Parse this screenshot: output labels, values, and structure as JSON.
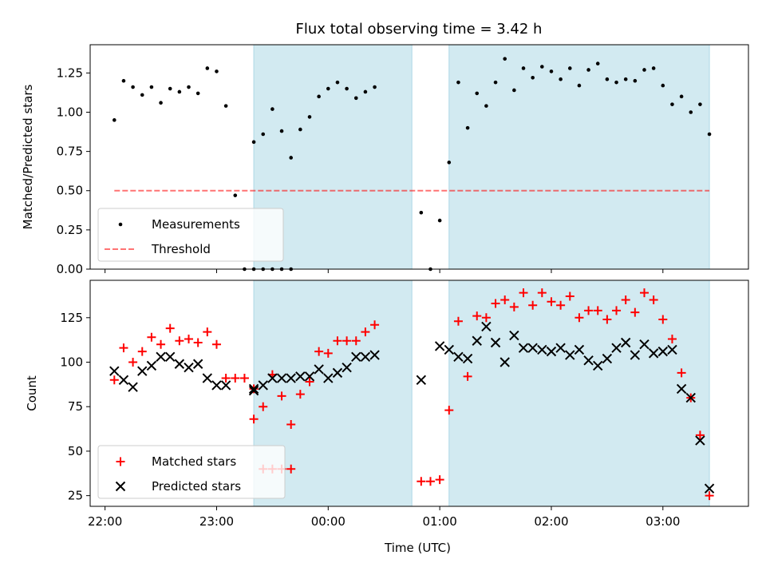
{
  "title": "Flux total observing time = 3.42 h",
  "colors": {
    "shade": "#add8e6",
    "measurement": "#000000",
    "threshold": "#ff0000",
    "matched": "#ff0000",
    "predicted": "#000000"
  },
  "chart_data": [
    {
      "type": "scatter",
      "ylabel": "Matched/Predicted stars",
      "ylim": [
        0,
        1.43
      ],
      "yticks": [
        0.0,
        0.25,
        0.5,
        0.75,
        1.0,
        1.25
      ],
      "ytick_labels": [
        "0.00",
        "0.25",
        "0.50",
        "0.75",
        "1.00",
        "1.25"
      ],
      "xlim": [
        "21:52",
        "03:46"
      ],
      "shaded_intervals": [
        [
          "23:20",
          "00:45"
        ],
        [
          "01:05",
          "03:25"
        ]
      ],
      "legend": {
        "placement": "lower-left",
        "entries": [
          "Measurements",
          "Threshold"
        ]
      },
      "threshold": {
        "name": "Threshold",
        "value": 0.5,
        "x_range": [
          "22:05",
          "03:25"
        ],
        "style": "dashed"
      },
      "series": [
        {
          "name": "Measurements",
          "marker": "dot",
          "points": [
            [
              "22:05",
              0.95
            ],
            [
              "22:10",
              1.2
            ],
            [
              "22:15",
              1.16
            ],
            [
              "22:20",
              1.11
            ],
            [
              "22:25",
              1.16
            ],
            [
              "22:30",
              1.06
            ],
            [
              "22:35",
              1.15
            ],
            [
              "22:40",
              1.13
            ],
            [
              "22:45",
              1.16
            ],
            [
              "22:50",
              1.12
            ],
            [
              "22:55",
              1.28
            ],
            [
              "23:00",
              1.26
            ],
            [
              "23:05",
              1.04
            ],
            [
              "23:10",
              0.47
            ],
            [
              "23:15",
              0.0
            ],
            [
              "23:20",
              0.0
            ],
            [
              "23:25",
              0.0
            ],
            [
              "23:30",
              0.0
            ],
            [
              "23:35",
              0.0
            ],
            [
              "23:40",
              0.0
            ],
            [
              "23:20",
              0.81
            ],
            [
              "23:25",
              0.86
            ],
            [
              "23:30",
              1.02
            ],
            [
              "23:35",
              0.88
            ],
            [
              "23:40",
              0.71
            ],
            [
              "23:45",
              0.89
            ],
            [
              "23:50",
              0.97
            ],
            [
              "23:55",
              1.1
            ],
            [
              "00:00",
              1.15
            ],
            [
              "00:05",
              1.19
            ],
            [
              "00:10",
              1.15
            ],
            [
              "00:15",
              1.09
            ],
            [
              "00:20",
              1.13
            ],
            [
              "00:25",
              1.16
            ],
            [
              "00:50",
              0.36
            ],
            [
              "00:55",
              0.0
            ],
            [
              "01:00",
              0.31
            ],
            [
              "01:05",
              0.68
            ],
            [
              "01:10",
              1.19
            ],
            [
              "01:15",
              0.9
            ],
            [
              "01:20",
              1.12
            ],
            [
              "01:25",
              1.04
            ],
            [
              "01:30",
              1.19
            ],
            [
              "01:35",
              1.34
            ],
            [
              "01:40",
              1.14
            ],
            [
              "01:45",
              1.28
            ],
            [
              "01:50",
              1.22
            ],
            [
              "01:55",
              1.29
            ],
            [
              "02:00",
              1.26
            ],
            [
              "02:05",
              1.21
            ],
            [
              "02:10",
              1.28
            ],
            [
              "02:15",
              1.17
            ],
            [
              "02:20",
              1.27
            ],
            [
              "02:25",
              1.31
            ],
            [
              "02:30",
              1.21
            ],
            [
              "02:35",
              1.19
            ],
            [
              "02:40",
              1.21
            ],
            [
              "02:45",
              1.2
            ],
            [
              "02:50",
              1.27
            ],
            [
              "02:55",
              1.28
            ],
            [
              "03:00",
              1.17
            ],
            [
              "03:05",
              1.05
            ],
            [
              "03:10",
              1.1
            ],
            [
              "03:15",
              1.0
            ],
            [
              "03:20",
              1.05
            ],
            [
              "03:25",
              0.86
            ]
          ]
        }
      ]
    },
    {
      "type": "scatter",
      "ylabel": "Count",
      "xlabel": "Time (UTC)",
      "ylim": [
        19,
        146
      ],
      "yticks": [
        25,
        50,
        75,
        100,
        125
      ],
      "ytick_labels": [
        "25",
        "50",
        "75",
        "100",
        "125"
      ],
      "xlim": [
        "21:52",
        "03:46"
      ],
      "xticks": [
        "22:00",
        "23:00",
        "00:00",
        "01:00",
        "02:00",
        "03:00"
      ],
      "xtick_labels": [
        "22:00",
        "23:00",
        "00:00",
        "01:00",
        "02:00",
        "03:00"
      ],
      "shaded_intervals": [
        [
          "23:20",
          "00:45"
        ],
        [
          "01:05",
          "03:25"
        ]
      ],
      "legend": {
        "placement": "lower-left",
        "entries": [
          "Matched stars",
          "Predicted stars"
        ]
      },
      "series": [
        {
          "name": "Matched stars",
          "marker": "plus",
          "points": [
            [
              "22:05",
              90
            ],
            [
              "22:10",
              108
            ],
            [
              "22:15",
              100
            ],
            [
              "22:20",
              106
            ],
            [
              "22:25",
              114
            ],
            [
              "22:30",
              110
            ],
            [
              "22:35",
              119
            ],
            [
              "22:40",
              112
            ],
            [
              "22:45",
              113
            ],
            [
              "22:50",
              111
            ],
            [
              "22:55",
              117
            ],
            [
              "23:00",
              110
            ],
            [
              "23:05",
              91
            ],
            [
              "23:10",
              91
            ],
            [
              "23:15",
              91
            ],
            [
              "23:20",
              85
            ],
            [
              "23:25",
              40
            ],
            [
              "23:30",
              40
            ],
            [
              "23:35",
              40
            ],
            [
              "23:40",
              40
            ],
            [
              "23:20",
              68
            ],
            [
              "23:25",
              75
            ],
            [
              "23:30",
              93
            ],
            [
              "23:35",
              81
            ],
            [
              "23:40",
              65
            ],
            [
              "23:45",
              82
            ],
            [
              "23:50",
              89
            ],
            [
              "23:55",
              106
            ],
            [
              "00:00",
              105
            ],
            [
              "00:05",
              112
            ],
            [
              "00:10",
              112
            ],
            [
              "00:15",
              112
            ],
            [
              "00:20",
              117
            ],
            [
              "00:25",
              121
            ],
            [
              "00:50",
              33
            ],
            [
              "00:55",
              33
            ],
            [
              "01:00",
              34
            ],
            [
              "01:05",
              73
            ],
            [
              "01:10",
              123
            ],
            [
              "01:15",
              92
            ],
            [
              "01:20",
              126
            ],
            [
              "01:25",
              125
            ],
            [
              "01:30",
              133
            ],
            [
              "01:35",
              135
            ],
            [
              "01:40",
              131
            ],
            [
              "01:45",
              139
            ],
            [
              "01:50",
              132
            ],
            [
              "01:55",
              139
            ],
            [
              "02:00",
              134
            ],
            [
              "02:05",
              132
            ],
            [
              "02:10",
              137
            ],
            [
              "02:15",
              125
            ],
            [
              "02:20",
              129
            ],
            [
              "02:25",
              129
            ],
            [
              "02:30",
              124
            ],
            [
              "02:35",
              129
            ],
            [
              "02:40",
              135
            ],
            [
              "02:45",
              128
            ],
            [
              "02:50",
              139
            ],
            [
              "02:55",
              135
            ],
            [
              "03:00",
              124
            ],
            [
              "03:05",
              113
            ],
            [
              "03:10",
              94
            ],
            [
              "03:15",
              80
            ],
            [
              "03:20",
              59
            ],
            [
              "03:25",
              25
            ]
          ]
        },
        {
          "name": "Predicted stars",
          "marker": "x",
          "points": [
            [
              "22:05",
              95
            ],
            [
              "22:10",
              90
            ],
            [
              "22:15",
              86
            ],
            [
              "22:20",
              95
            ],
            [
              "22:25",
              98
            ],
            [
              "22:30",
              103
            ],
            [
              "22:35",
              103
            ],
            [
              "22:40",
              99
            ],
            [
              "22:45",
              97
            ],
            [
              "22:50",
              99
            ],
            [
              "22:55",
              91
            ],
            [
              "23:00",
              87
            ],
            [
              "23:05",
              87
            ],
            [
              "23:20",
              85
            ],
            [
              "23:20",
              84
            ],
            [
              "23:25",
              87
            ],
            [
              "23:30",
              91
            ],
            [
              "23:35",
              91
            ],
            [
              "23:40",
              91
            ],
            [
              "23:45",
              92
            ],
            [
              "23:50",
              92
            ],
            [
              "23:55",
              96
            ],
            [
              "00:00",
              91
            ],
            [
              "00:05",
              94
            ],
            [
              "00:10",
              97
            ],
            [
              "00:15",
              103
            ],
            [
              "00:20",
              103
            ],
            [
              "00:25",
              104
            ],
            [
              "00:50",
              90
            ],
            [
              "01:00",
              109
            ],
            [
              "01:05",
              107
            ],
            [
              "01:10",
              103
            ],
            [
              "01:15",
              102
            ],
            [
              "01:20",
              112
            ],
            [
              "01:25",
              120
            ],
            [
              "01:30",
              111
            ],
            [
              "01:35",
              100
            ],
            [
              "01:40",
              115
            ],
            [
              "01:45",
              108
            ],
            [
              "01:50",
              108
            ],
            [
              "01:55",
              107
            ],
            [
              "02:00",
              106
            ],
            [
              "02:05",
              108
            ],
            [
              "02:10",
              104
            ],
            [
              "02:15",
              107
            ],
            [
              "02:20",
              101
            ],
            [
              "02:25",
              98
            ],
            [
              "02:30",
              102
            ],
            [
              "02:35",
              108
            ],
            [
              "02:40",
              111
            ],
            [
              "02:45",
              104
            ],
            [
              "02:50",
              110
            ],
            [
              "02:55",
              105
            ],
            [
              "03:00",
              106
            ],
            [
              "03:05",
              107
            ],
            [
              "03:10",
              85
            ],
            [
              "03:15",
              80
            ],
            [
              "03:20",
              56
            ],
            [
              "03:25",
              29
            ]
          ]
        }
      ]
    }
  ]
}
